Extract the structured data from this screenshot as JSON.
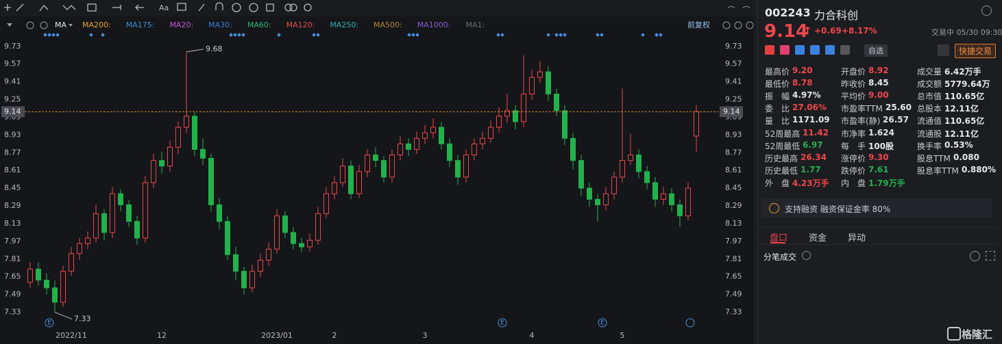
{
  "toolbar": {
    "text_tool": "Aa"
  },
  "ma_bar": {
    "selector": "MA",
    "items": [
      {
        "name": "MA200:",
        "color": "#e6a23c"
      },
      {
        "name": "MA175:",
        "color": "#3b8fd6"
      },
      {
        "name": "MA20:",
        "color": "#c857d6"
      },
      {
        "name": "MA30:",
        "color": "#3a7bd5"
      },
      {
        "name": "MA60:",
        "color": "#2fb37a"
      },
      {
        "name": "MA120:",
        "color": "#e0504f"
      },
      {
        "name": "MA250:",
        "color": "#2fb0b0"
      },
      {
        "name": "MA500:",
        "color": "#b08a3a"
      },
      {
        "name": "MA1000:",
        "color": "#8a5cd6"
      },
      {
        "name": "MA1:",
        "color": "#6b6d73"
      }
    ],
    "adjust": "前复权"
  },
  "chart_data": {
    "type": "candlestick",
    "up_color": "#f0464c",
    "down_color": "#22b24c",
    "last_line_color": "#d9822b",
    "categories": [
      null,
      null,
      null,
      null,
      null,
      "2022/11",
      null,
      null,
      null,
      null,
      null,
      null,
      null,
      null,
      null,
      null,
      "12",
      null,
      null,
      null,
      null,
      null,
      null,
      null,
      null,
      null,
      null,
      null,
      null,
      null,
      "2023/01",
      null,
      null,
      null,
      null,
      null,
      null,
      "2",
      null,
      null,
      null,
      null,
      null,
      null,
      null,
      null,
      null,
      null,
      "3",
      null,
      null,
      null,
      null,
      null,
      null,
      null,
      null,
      null,
      null,
      null,
      null,
      "4",
      null,
      null,
      null,
      null,
      null,
      null,
      null,
      null,
      null,
      null,
      "5",
      null,
      null,
      null,
      null,
      null,
      null,
      null,
      null,
      null
    ],
    "open": [
      7.6,
      7.72,
      7.62,
      7.55,
      7.42,
      7.7,
      7.86,
      7.95,
      8.0,
      8.22,
      8.05,
      8.4,
      8.3,
      8.15,
      8.0,
      8.5,
      8.7,
      8.65,
      8.82,
      9.0,
      9.1,
      8.8,
      8.72,
      8.3,
      8.15,
      7.85,
      7.7,
      7.55,
      7.7,
      7.8,
      7.9,
      8.2,
      8.05,
      7.95,
      7.92,
      7.98,
      8.22,
      8.4,
      8.5,
      8.65,
      8.4,
      8.6,
      8.75,
      8.7,
      8.55,
      8.75,
      8.85,
      8.8,
      8.9,
      8.95,
      9.0,
      8.85,
      8.7,
      8.55,
      8.75,
      8.85,
      8.9,
      9.0,
      9.1,
      9.15,
      9.05,
      9.3,
      9.45,
      9.5,
      9.3,
      9.15,
      8.9,
      8.7,
      8.45,
      8.35,
      8.3,
      8.4,
      8.55,
      8.7,
      8.75,
      8.6,
      8.5,
      8.35,
      8.4,
      8.3,
      8.2,
      8.92
    ],
    "high": [
      7.78,
      7.78,
      7.68,
      7.62,
      7.75,
      7.92,
      8.0,
      8.06,
      8.3,
      8.26,
      8.46,
      8.44,
      8.34,
      8.2,
      8.56,
      8.76,
      8.78,
      8.88,
      9.05,
      9.68,
      9.14,
      8.9,
      8.76,
      8.36,
      8.2,
      7.92,
      7.74,
      7.76,
      7.86,
      7.96,
      8.26,
      8.24,
      8.1,
      8.0,
      8.04,
      8.28,
      8.46,
      8.56,
      8.72,
      8.7,
      8.66,
      8.8,
      8.82,
      8.74,
      8.8,
      8.92,
      8.9,
      8.96,
      9.02,
      9.08,
      9.05,
      8.9,
      8.75,
      8.8,
      8.9,
      8.96,
      9.06,
      9.18,
      9.3,
      9.2,
      9.65,
      9.52,
      9.6,
      9.55,
      9.35,
      9.2,
      8.95,
      8.75,
      8.5,
      8.4,
      8.46,
      8.6,
      9.35,
      8.94,
      8.8,
      8.65,
      8.55,
      8.46,
      8.45,
      8.35,
      8.5,
      9.2
    ],
    "low": [
      7.55,
      7.57,
      7.49,
      7.33,
      7.38,
      7.66,
      7.8,
      7.9,
      7.96,
      7.98,
      8.0,
      8.24,
      8.1,
      7.94,
      7.96,
      8.45,
      8.58,
      8.6,
      8.76,
      8.95,
      8.74,
      8.66,
      8.24,
      8.08,
      7.8,
      7.62,
      7.49,
      7.51,
      7.65,
      7.75,
      7.86,
      8.0,
      7.9,
      7.87,
      7.88,
      7.94,
      8.18,
      8.35,
      8.46,
      8.35,
      8.36,
      8.55,
      8.64,
      8.5,
      8.5,
      8.7,
      8.74,
      8.76,
      8.85,
      8.9,
      8.8,
      8.64,
      8.48,
      8.5,
      8.7,
      8.8,
      8.86,
      8.95,
      9.04,
      8.98,
      9.0,
      9.25,
      9.4,
      9.24,
      9.1,
      8.84,
      8.62,
      8.38,
      8.28,
      8.15,
      8.25,
      8.35,
      8.5,
      8.66,
      8.54,
      8.44,
      8.28,
      8.3,
      8.24,
      8.1,
      8.16,
      8.78
    ],
    "close": [
      7.72,
      7.62,
      7.55,
      7.42,
      7.7,
      7.86,
      7.95,
      8.0,
      8.22,
      8.05,
      8.4,
      8.3,
      8.15,
      8.0,
      8.5,
      8.7,
      8.65,
      8.82,
      9.0,
      9.1,
      8.8,
      8.72,
      8.3,
      8.15,
      7.85,
      7.7,
      7.55,
      7.7,
      7.8,
      7.9,
      8.2,
      8.05,
      7.95,
      7.92,
      7.98,
      8.22,
      8.4,
      8.5,
      8.65,
      8.4,
      8.6,
      8.75,
      8.7,
      8.55,
      8.75,
      8.85,
      8.8,
      8.9,
      8.95,
      9.0,
      8.85,
      8.7,
      8.55,
      8.75,
      8.85,
      8.9,
      9.0,
      9.1,
      9.15,
      9.05,
      9.3,
      9.45,
      9.5,
      9.3,
      9.15,
      8.9,
      8.7,
      8.45,
      8.35,
      8.3,
      8.4,
      8.55,
      8.7,
      8.75,
      8.6,
      8.5,
      8.35,
      8.4,
      8.3,
      8.2,
      8.45,
      9.14
    ],
    "ylim": [
      7.21,
      9.84
    ],
    "yticks": [
      9.73,
      9.57,
      9.41,
      9.25,
      9.09,
      8.93,
      8.77,
      8.61,
      8.45,
      8.29,
      8.13,
      7.97,
      7.81,
      7.65,
      7.49,
      7.33
    ],
    "grid": false,
    "event_marker": "E"
  },
  "quote": {
    "code": "002243",
    "name": "力合科创",
    "change": "+0.69",
    "change_pct": "+8.17%",
    "status": "交易中 05/30 09:30",
    "watch": "自选",
    "trade": "快捷交易",
    "stats": [
      [
        {
          "label": "最高价",
          "value": "9.20",
          "color": "#f0464c"
        },
        {
          "label": "开盘价",
          "value": "8.92",
          "color": "#f0464c"
        },
        {
          "label": "成交量",
          "value": "6.42万手",
          "color": "#e6e7ea"
        }
      ],
      [
        {
          "label": "最低价",
          "value": "8.78",
          "color": "#f0464c"
        },
        {
          "label": "昨收价",
          "value": "8.45",
          "color": "#e6e7ea"
        },
        {
          "label": "成交额",
          "value": "5779.64万",
          "color": "#e6e7ea"
        }
      ],
      [
        {
          "label": "振　幅",
          "value": "4.97%",
          "color": "#e6e7ea"
        },
        {
          "label": "平均价",
          "value": "9.00",
          "color": "#f0464c"
        },
        {
          "label": "总市值",
          "value": "110.65亿",
          "color": "#e6e7ea"
        }
      ],
      [
        {
          "label": "委　比",
          "value": "27.06%",
          "color": "#f0464c"
        },
        {
          "label": "市盈率TTM",
          "value": "25.60",
          "color": "#e6e7ea"
        },
        {
          "label": "总股本",
          "value": "12.11亿",
          "color": "#e6e7ea"
        }
      ],
      [
        {
          "label": "量　比",
          "value": "1171.09",
          "color": "#e6e7ea"
        },
        {
          "label": "市盈率(静)",
          "value": "26.57",
          "color": "#e6e7ea"
        },
        {
          "label": "流通值",
          "value": "110.65亿",
          "color": "#e6e7ea"
        }
      ],
      [
        {
          "label": "52周最高",
          "value": "11.42",
          "color": "#f0464c"
        },
        {
          "label": "市净率",
          "value": "1.624",
          "color": "#e6e7ea"
        },
        {
          "label": "流通股",
          "value": "12.11亿",
          "color": "#e6e7ea"
        }
      ],
      [
        {
          "label": "52周最低",
          "value": "6.97",
          "color": "#22b24c"
        },
        {
          "label": "每　手",
          "value": "100股",
          "color": "#e6e7ea"
        },
        {
          "label": "换手率",
          "value": "0.53%",
          "color": "#e6e7ea"
        }
      ],
      [
        {
          "label": "历史最高",
          "value": "26.34",
          "color": "#f0464c"
        },
        {
          "label": "涨停价",
          "value": "9.30",
          "color": "#f0464c"
        },
        {
          "label": "股息TTM",
          "value": "0.080",
          "color": "#e6e7ea"
        }
      ],
      [
        {
          "label": "历史最低",
          "value": "1.77",
          "color": "#22b24c"
        },
        {
          "label": "跌停价",
          "value": "7.61",
          "color": "#22b24c"
        },
        {
          "label": "股息率TTM",
          "value": "0.880%",
          "color": "#e6e7ea"
        }
      ],
      [
        {
          "label": "外　盘",
          "value": "4.23万手",
          "color": "#f0464c"
        },
        {
          "label": "内　盘",
          "value": "1.79万手",
          "color": "#22b24c"
        }
      ]
    ],
    "margin_note": "支持融资 融资保证金率 80%",
    "tabs": [
      "盘口",
      "资金",
      "异动"
    ],
    "ticks_title": "分笔成交",
    "brand": "格隆汇"
  }
}
